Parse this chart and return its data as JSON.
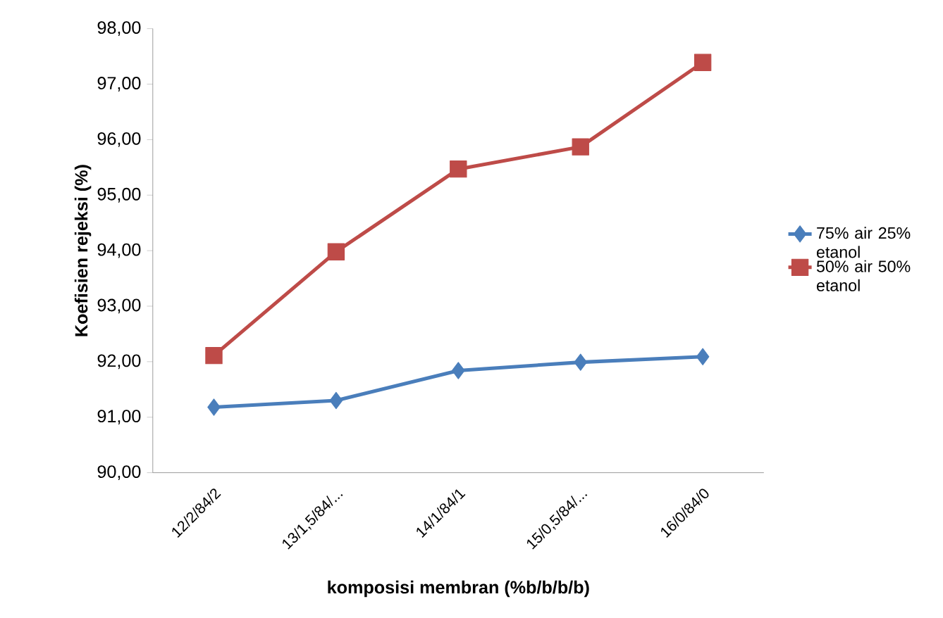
{
  "chart_data": {
    "type": "line",
    "xlabel": "komposisi membran (%b/b/b/b)",
    "ylabel": "Koefisien rejeksi (%)",
    "categories": [
      "12/2/84/2",
      "13/1,5/84/...",
      "14/1/84/1",
      "15/0,5/84/...",
      "16/0/84/0"
    ],
    "series": [
      {
        "name": "75% air 25% etanol",
        "color": "#4a7ebb",
        "marker": "diamond",
        "values": [
          91.18,
          91.3,
          91.84,
          91.99,
          92.09
        ]
      },
      {
        "name": "50% air 50% etanol",
        "color": "#be4b48",
        "marker": "square",
        "values": [
          92.11,
          93.98,
          95.47,
          95.87,
          97.39
        ]
      }
    ],
    "ylim": [
      90,
      98
    ],
    "yticks": [
      {
        "value": 90,
        "label": "90,00"
      },
      {
        "value": 91,
        "label": "91,00"
      },
      {
        "value": 92,
        "label": "92,00"
      },
      {
        "value": 93,
        "label": "93,00"
      },
      {
        "value": 94,
        "label": "94,00"
      },
      {
        "value": 95,
        "label": "95,00"
      },
      {
        "value": 96,
        "label": "96,00"
      },
      {
        "value": 97,
        "label": "97,00"
      },
      {
        "value": 98,
        "label": "98,00"
      }
    ],
    "legend": "right",
    "grid": false,
    "line_style": "solid"
  }
}
